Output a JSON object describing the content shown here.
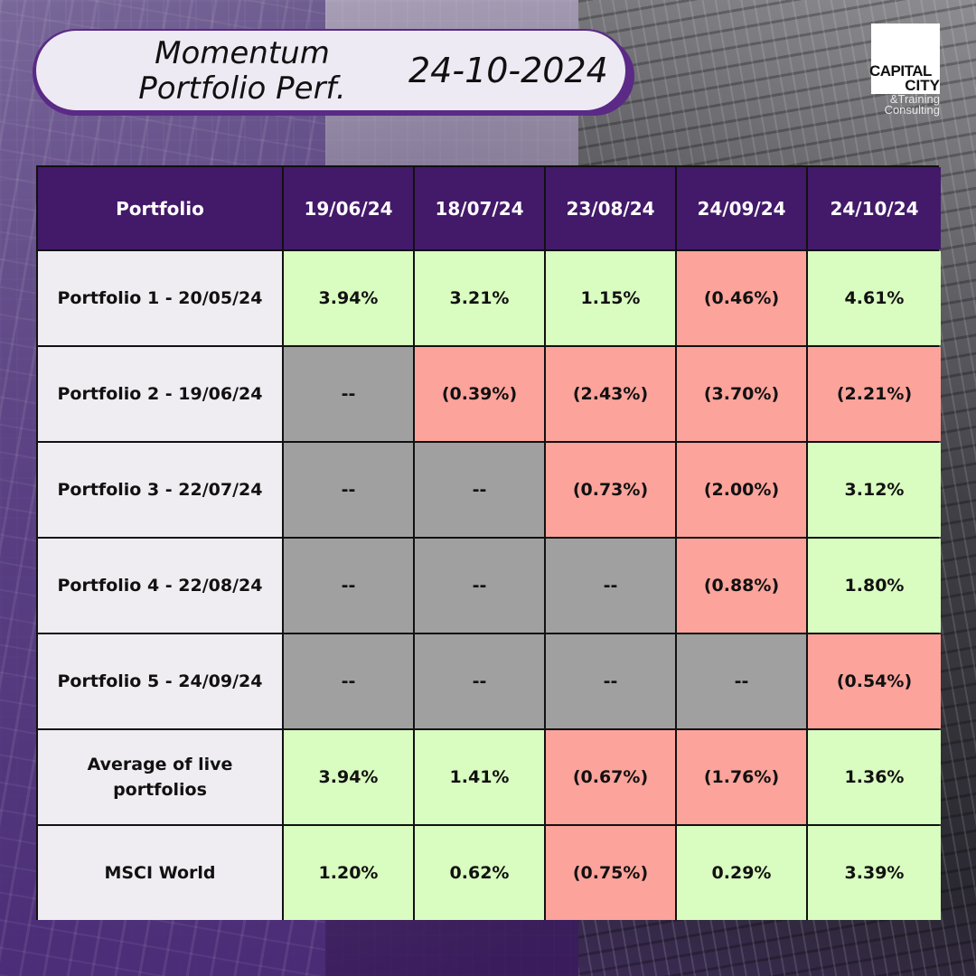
{
  "header": {
    "title_line1": "Momentum",
    "title_line2": "Portfolio Perf.",
    "date": "24-10-2024"
  },
  "logo": {
    "line1": "CAPITAL",
    "line2": "CITY",
    "line3": "Training",
    "line4": "&",
    "line5": "Consulting"
  },
  "colors": {
    "header_bg": "#43196a",
    "positive": "#d9fcc0",
    "negative": "#fca39b",
    "not_applicable": "#a0a0a0",
    "label_bg": "#efedf2"
  },
  "table": {
    "columns": [
      "Portfolio",
      "19/06/24",
      "18/07/24",
      "23/08/24",
      "24/09/24",
      "24/10/24"
    ],
    "rows": [
      {
        "label": "Portfolio 1 - 20/05/24",
        "values": [
          "3.94%",
          "3.21%",
          "1.15%",
          "(0.46%)",
          "4.61%"
        ],
        "status": [
          "green",
          "green",
          "green",
          "red",
          "green"
        ]
      },
      {
        "label": "Portfolio 2 - 19/06/24",
        "values": [
          "--",
          "(0.39%)",
          "(2.43%)",
          "(3.70%)",
          "(2.21%)"
        ],
        "status": [
          "gray",
          "red",
          "red",
          "red",
          "red"
        ]
      },
      {
        "label": "Portfolio 3 - 22/07/24",
        "values": [
          "--",
          "--",
          "(0.73%)",
          "(2.00%)",
          "3.12%"
        ],
        "status": [
          "gray",
          "gray",
          "red",
          "red",
          "green"
        ]
      },
      {
        "label": "Portfolio 4 - 22/08/24",
        "values": [
          "--",
          "--",
          "--",
          "(0.88%)",
          "1.80%"
        ],
        "status": [
          "gray",
          "gray",
          "gray",
          "red",
          "green"
        ]
      },
      {
        "label": "Portfolio 5 - 24/09/24",
        "values": [
          "--",
          "--",
          "--",
          "--",
          "(0.54%)"
        ],
        "status": [
          "gray",
          "gray",
          "gray",
          "gray",
          "red"
        ]
      },
      {
        "label": "Average of live portfolios",
        "values": [
          "3.94%",
          "1.41%",
          "(0.67%)",
          "(1.76%)",
          "1.36%"
        ],
        "status": [
          "green",
          "green",
          "red",
          "red",
          "green"
        ]
      },
      {
        "label": "MSCI World",
        "values": [
          "1.20%",
          "0.62%",
          "(0.75%)",
          "0.29%",
          "3.39%"
        ],
        "status": [
          "green",
          "green",
          "red",
          "green",
          "green"
        ]
      }
    ]
  }
}
